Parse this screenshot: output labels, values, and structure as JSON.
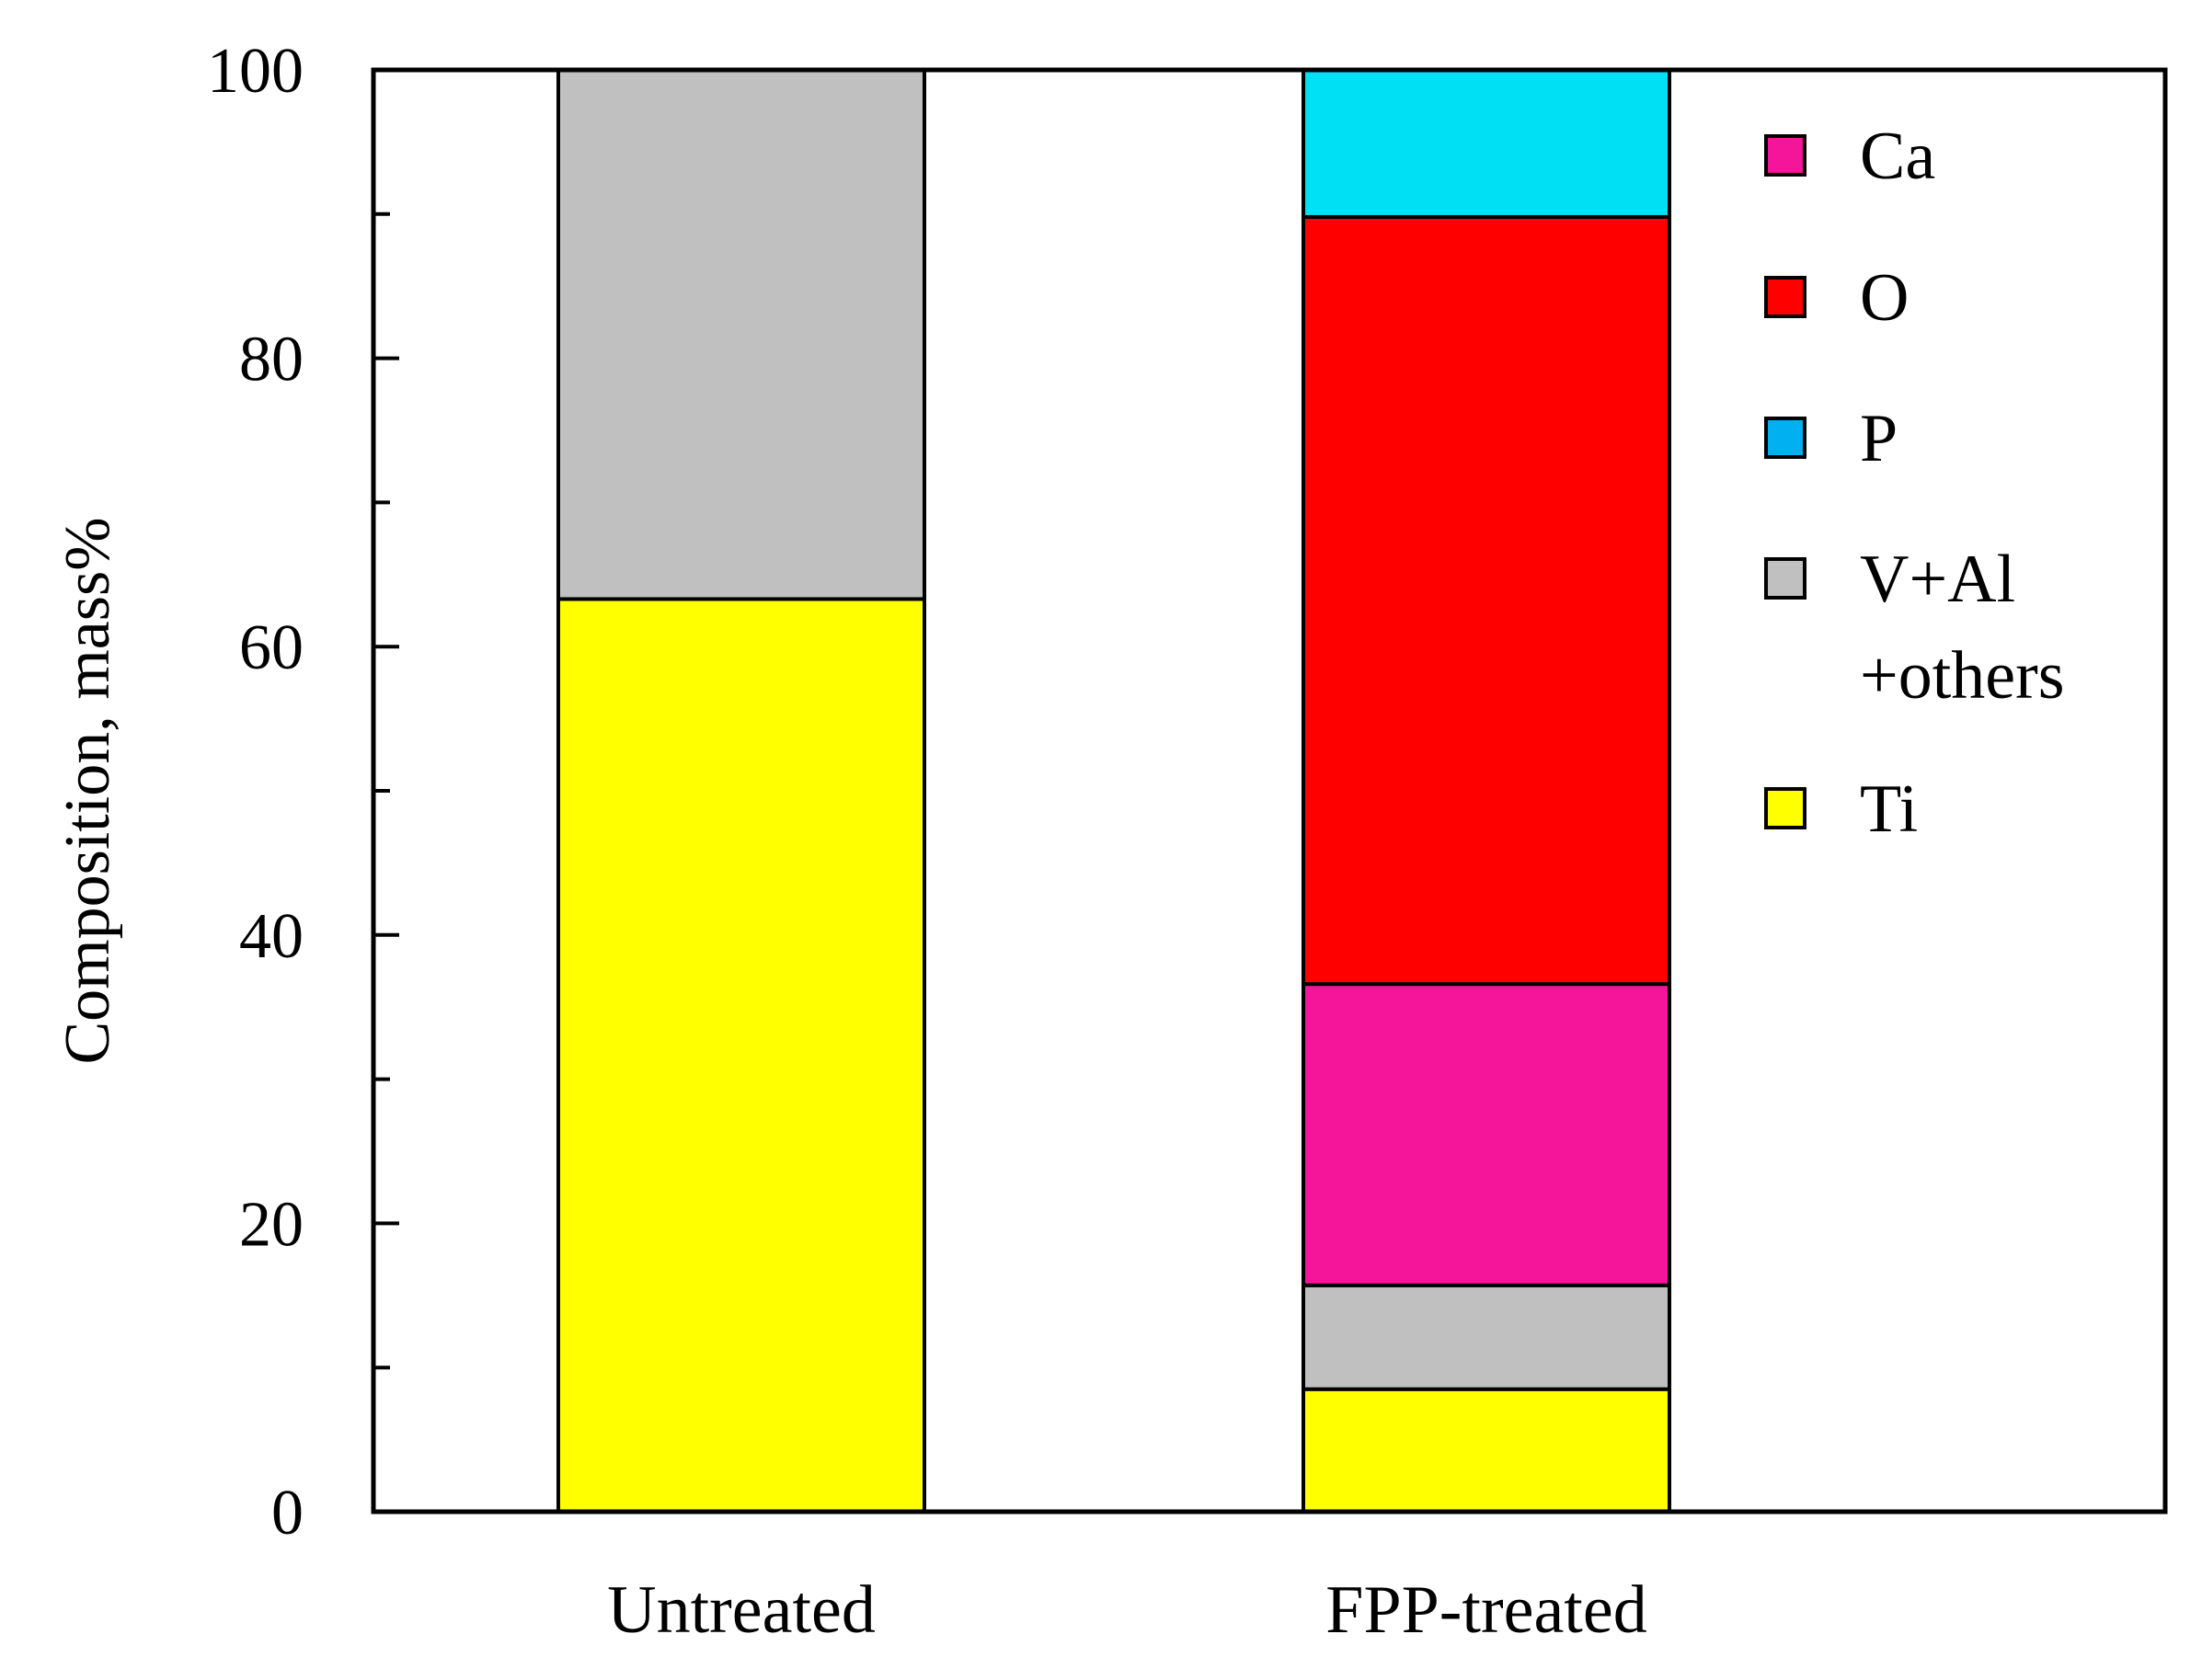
{
  "chart_data": {
    "type": "bar",
    "stacked": true,
    "categories": [
      "Untreated",
      "FPP-treated"
    ],
    "ylabel": "Composition, mass%",
    "ylim": [
      0,
      100
    ],
    "yticks": [
      0,
      20,
      40,
      60,
      80,
      100
    ],
    "yticks_minor": [
      10,
      30,
      50,
      70,
      90
    ],
    "grid": false,
    "legend_position": "top-right, inside",
    "series": [
      {
        "name": "Ti",
        "color": "#FFFF00",
        "values": [
          63.3,
          8.5
        ]
      },
      {
        "name": "V+Al +others",
        "color": "#C0C0C0",
        "values": [
          36.7,
          7.2
        ]
      },
      {
        "name": "Ca",
        "color": "#F5159A",
        "values": [
          0,
          20.9
        ]
      },
      {
        "name": "O",
        "color": "#FF0000",
        "values": [
          0,
          53.2
        ]
      },
      {
        "name": "P",
        "color": "#00E0F5",
        "values": [
          0,
          10.2
        ]
      }
    ],
    "legend": [
      {
        "lines": [
          "Ca"
        ],
        "color": "#F5159A"
      },
      {
        "lines": [
          "O"
        ],
        "color": "#FF0000"
      },
      {
        "lines": [
          "P"
        ],
        "color": "#00B0F0"
      },
      {
        "lines": [
          "V+Al",
          "+others"
        ],
        "color": "#C0C0C0"
      },
      {
        "lines": [
          "Ti"
        ],
        "color": "#FFFF00"
      }
    ]
  }
}
